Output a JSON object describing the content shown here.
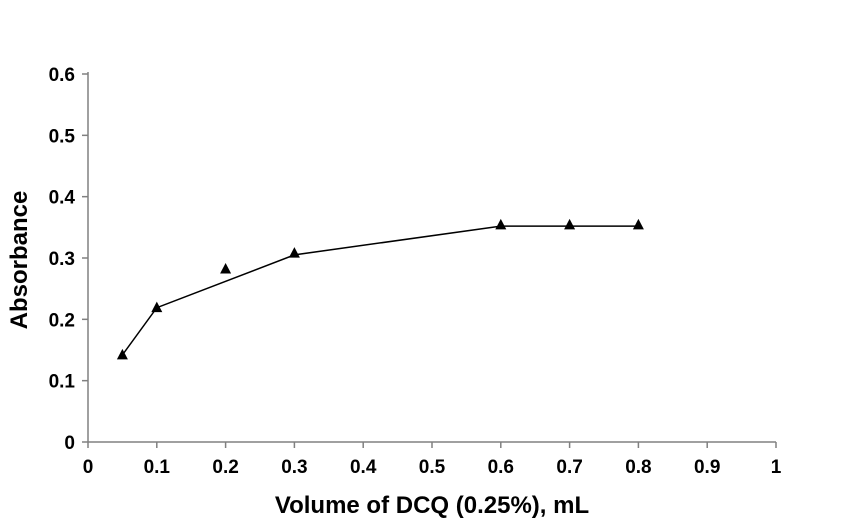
{
  "chart_data": {
    "type": "line",
    "title": "",
    "xlabel": "Volume of DCQ (0.25%), mL",
    "ylabel": "Absorbance",
    "xlim": [
      0,
      1
    ],
    "ylim": [
      0,
      0.6
    ],
    "x_ticks": [
      "0",
      "0.1",
      "0.2",
      "0.3",
      "0.4",
      "0.5",
      "0.6",
      "0.7",
      "0.8",
      "0.9",
      "1"
    ],
    "y_ticks": [
      "0",
      "0.1",
      "0.2",
      "0.3",
      "0.4",
      "0.5",
      "0.6"
    ],
    "grid": false,
    "legend": "none",
    "series": [
      {
        "marker": "triangle",
        "color": "#000000",
        "x": [
          0.05,
          0.1,
          0.2,
          0.3,
          0.6,
          0.7,
          0.8
        ],
        "y": [
          0.142,
          0.219,
          0.282,
          0.308,
          0.354,
          0.354,
          0.354
        ],
        "line_x": [
          0.05,
          0.1,
          0.3,
          0.6,
          0.8
        ],
        "line_y": [
          0.142,
          0.219,
          0.305,
          0.352,
          0.352
        ]
      }
    ]
  }
}
